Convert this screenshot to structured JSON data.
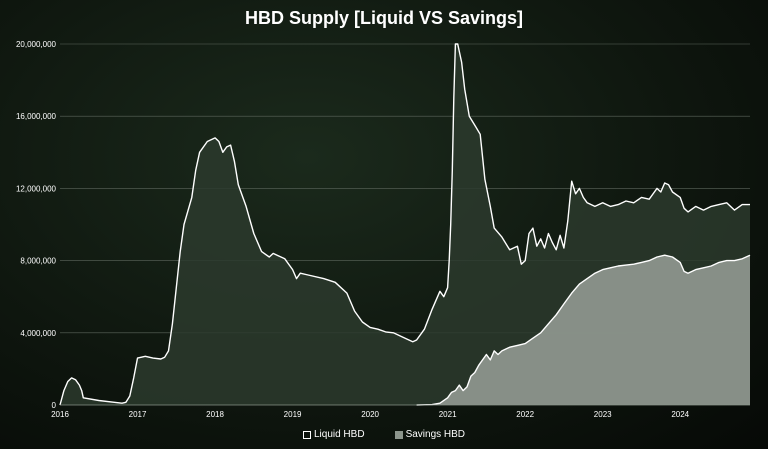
{
  "chart_data": {
    "type": "area",
    "title": "HBD Supply [Liquid VS Savings]",
    "xlabel": "",
    "ylabel": "",
    "xlim": [
      2016.0,
      2024.9
    ],
    "ylim": [
      0,
      20000000
    ],
    "x_ticks": [
      "2016",
      "2017",
      "2018",
      "2019",
      "2020",
      "2021",
      "2022",
      "2023",
      "2024"
    ],
    "y_ticks": [
      "0",
      "4,000,000",
      "8,000,000",
      "12,000,000",
      "16,000,000",
      "20,000,000"
    ],
    "y_tick_values": [
      0,
      4000000,
      8000000,
      12000000,
      16000000,
      20000000
    ],
    "grid": "horizontal",
    "legend_position": "bottom",
    "series": [
      {
        "name": "Liquid HBD",
        "style": "area-with-white-outline",
        "color": "#ffffff",
        "fill": "#2c3a2d",
        "points": [
          [
            2016.0,
            0
          ],
          [
            2016.05,
            800000
          ],
          [
            2016.1,
            1300000
          ],
          [
            2016.15,
            1500000
          ],
          [
            2016.2,
            1400000
          ],
          [
            2016.25,
            1100000
          ],
          [
            2016.28,
            800000
          ],
          [
            2016.3,
            400000
          ],
          [
            2016.5,
            250000
          ],
          [
            2016.7,
            150000
          ],
          [
            2016.8,
            100000
          ],
          [
            2016.85,
            150000
          ],
          [
            2016.9,
            500000
          ],
          [
            2016.95,
            1500000
          ],
          [
            2017.0,
            2600000
          ],
          [
            2017.1,
            2700000
          ],
          [
            2017.2,
            2600000
          ],
          [
            2017.3,
            2550000
          ],
          [
            2017.35,
            2650000
          ],
          [
            2017.4,
            3000000
          ],
          [
            2017.45,
            4500000
          ],
          [
            2017.5,
            6500000
          ],
          [
            2017.55,
            8500000
          ],
          [
            2017.6,
            10000000
          ],
          [
            2017.7,
            11500000
          ],
          [
            2017.75,
            13000000
          ],
          [
            2017.8,
            14000000
          ],
          [
            2017.9,
            14600000
          ],
          [
            2018.0,
            14800000
          ],
          [
            2018.05,
            14600000
          ],
          [
            2018.1,
            14000000
          ],
          [
            2018.15,
            14300000
          ],
          [
            2018.2,
            14400000
          ],
          [
            2018.25,
            13500000
          ],
          [
            2018.3,
            12200000
          ],
          [
            2018.4,
            11000000
          ],
          [
            2018.5,
            9500000
          ],
          [
            2018.6,
            8500000
          ],
          [
            2018.7,
            8200000
          ],
          [
            2018.75,
            8400000
          ],
          [
            2018.8,
            8300000
          ],
          [
            2018.9,
            8100000
          ],
          [
            2019.0,
            7500000
          ],
          [
            2019.05,
            7000000
          ],
          [
            2019.1,
            7300000
          ],
          [
            2019.2,
            7200000
          ],
          [
            2019.4,
            7000000
          ],
          [
            2019.55,
            6800000
          ],
          [
            2019.7,
            6200000
          ],
          [
            2019.8,
            5200000
          ],
          [
            2019.9,
            4600000
          ],
          [
            2020.0,
            4300000
          ],
          [
            2020.1,
            4200000
          ],
          [
            2020.2,
            4050000
          ],
          [
            2020.3,
            4000000
          ],
          [
            2020.4,
            3800000
          ],
          [
            2020.5,
            3600000
          ],
          [
            2020.55,
            3500000
          ],
          [
            2020.6,
            3600000
          ],
          [
            2020.7,
            4200000
          ],
          [
            2020.8,
            5300000
          ],
          [
            2020.9,
            6300000
          ],
          [
            2020.95,
            6000000
          ],
          [
            2021.0,
            6500000
          ],
          [
            2021.02,
            8000000
          ],
          [
            2021.04,
            10000000
          ],
          [
            2021.06,
            13000000
          ],
          [
            2021.08,
            17000000
          ],
          [
            2021.1,
            20500000
          ],
          [
            2021.13,
            21500000
          ],
          [
            2021.18,
            19000000
          ],
          [
            2021.22,
            17500000
          ],
          [
            2021.28,
            16000000
          ],
          [
            2021.35,
            15500000
          ],
          [
            2021.42,
            15000000
          ],
          [
            2021.48,
            12500000
          ],
          [
            2021.55,
            11000000
          ],
          [
            2021.6,
            9800000
          ],
          [
            2021.7,
            9300000
          ],
          [
            2021.8,
            8600000
          ],
          [
            2021.9,
            8800000
          ],
          [
            2021.95,
            7800000
          ],
          [
            2022.0,
            8000000
          ],
          [
            2022.05,
            9500000
          ],
          [
            2022.1,
            9800000
          ],
          [
            2022.15,
            8800000
          ],
          [
            2022.2,
            9200000
          ],
          [
            2022.25,
            8700000
          ],
          [
            2022.3,
            9500000
          ],
          [
            2022.35,
            9000000
          ],
          [
            2022.4,
            8600000
          ],
          [
            2022.45,
            9400000
          ],
          [
            2022.5,
            8700000
          ],
          [
            2022.55,
            10200000
          ],
          [
            2022.6,
            12400000
          ],
          [
            2022.65,
            11700000
          ],
          [
            2022.7,
            12000000
          ],
          [
            2022.75,
            11500000
          ],
          [
            2022.8,
            11200000
          ],
          [
            2022.9,
            11000000
          ],
          [
            2023.0,
            11200000
          ],
          [
            2023.1,
            11000000
          ],
          [
            2023.2,
            11100000
          ],
          [
            2023.3,
            11300000
          ],
          [
            2023.4,
            11200000
          ],
          [
            2023.5,
            11500000
          ],
          [
            2023.6,
            11400000
          ],
          [
            2023.7,
            12000000
          ],
          [
            2023.75,
            11800000
          ],
          [
            2023.8,
            12300000
          ],
          [
            2023.85,
            12200000
          ],
          [
            2023.9,
            11800000
          ],
          [
            2024.0,
            11500000
          ],
          [
            2024.05,
            10900000
          ],
          [
            2024.1,
            10700000
          ],
          [
            2024.2,
            11000000
          ],
          [
            2024.3,
            10800000
          ],
          [
            2024.4,
            11000000
          ],
          [
            2024.5,
            11100000
          ],
          [
            2024.6,
            11200000
          ],
          [
            2024.7,
            10800000
          ],
          [
            2024.8,
            11100000
          ],
          [
            2024.9,
            11100000
          ]
        ]
      },
      {
        "name": "Savings HBD",
        "style": "area-with-white-outline",
        "color": "#ffffff",
        "fill": "#8c958c",
        "points": [
          [
            2020.6,
            0
          ],
          [
            2020.8,
            20000
          ],
          [
            2020.9,
            100000
          ],
          [
            2021.0,
            400000
          ],
          [
            2021.05,
            700000
          ],
          [
            2021.1,
            800000
          ],
          [
            2021.15,
            1100000
          ],
          [
            2021.2,
            800000
          ],
          [
            2021.25,
            1000000
          ],
          [
            2021.3,
            1600000
          ],
          [
            2021.35,
            1800000
          ],
          [
            2021.4,
            2200000
          ],
          [
            2021.5,
            2800000
          ],
          [
            2021.55,
            2500000
          ],
          [
            2021.6,
            3000000
          ],
          [
            2021.65,
            2800000
          ],
          [
            2021.7,
            3000000
          ],
          [
            2021.8,
            3200000
          ],
          [
            2021.9,
            3300000
          ],
          [
            2022.0,
            3400000
          ],
          [
            2022.1,
            3700000
          ],
          [
            2022.2,
            4000000
          ],
          [
            2022.3,
            4500000
          ],
          [
            2022.4,
            5000000
          ],
          [
            2022.5,
            5600000
          ],
          [
            2022.6,
            6200000
          ],
          [
            2022.7,
            6700000
          ],
          [
            2022.8,
            7000000
          ],
          [
            2022.9,
            7300000
          ],
          [
            2023.0,
            7500000
          ],
          [
            2023.1,
            7600000
          ],
          [
            2023.2,
            7700000
          ],
          [
            2023.3,
            7750000
          ],
          [
            2023.4,
            7800000
          ],
          [
            2023.5,
            7900000
          ],
          [
            2023.6,
            8000000
          ],
          [
            2023.7,
            8200000
          ],
          [
            2023.8,
            8300000
          ],
          [
            2023.9,
            8200000
          ],
          [
            2024.0,
            7900000
          ],
          [
            2024.05,
            7400000
          ],
          [
            2024.1,
            7300000
          ],
          [
            2024.2,
            7500000
          ],
          [
            2024.3,
            7600000
          ],
          [
            2024.4,
            7700000
          ],
          [
            2024.5,
            7900000
          ],
          [
            2024.6,
            8000000
          ],
          [
            2024.7,
            8000000
          ],
          [
            2024.8,
            8100000
          ],
          [
            2024.9,
            8300000
          ]
        ]
      }
    ]
  }
}
